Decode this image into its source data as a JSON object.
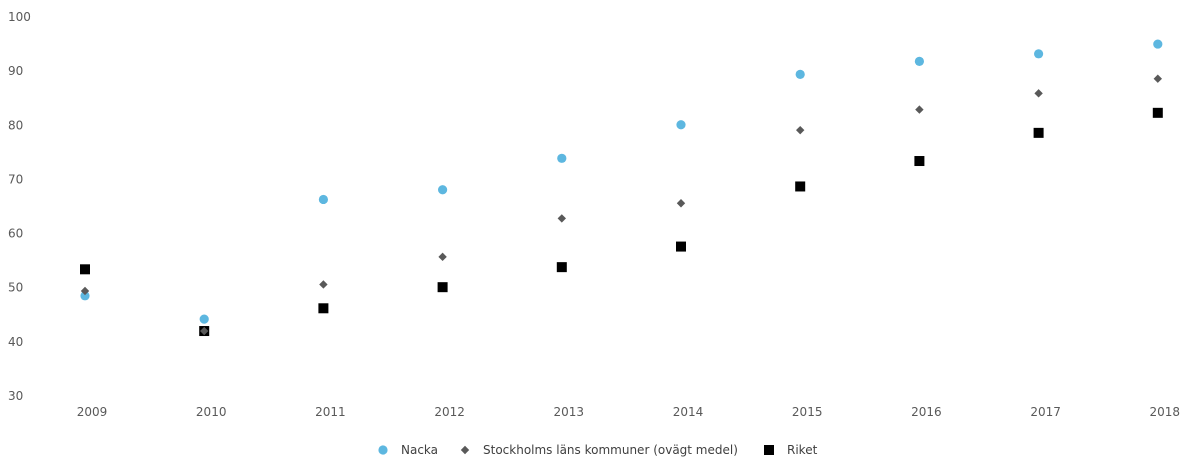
{
  "chart_data": {
    "type": "scatter",
    "categories": [
      "2009",
      "2010",
      "2011",
      "2012",
      "2013",
      "2014",
      "2015",
      "2016",
      "2017",
      "2018"
    ],
    "ylim": [
      30,
      100
    ],
    "yticks": [
      "30",
      "40",
      "50",
      "60",
      "70",
      "80",
      "90",
      "100"
    ],
    "grid": false,
    "legend_position": "bottom",
    "series": [
      {
        "name": "Nacka",
        "marker": "circle",
        "color": "#5DB7E0",
        "values": [
          48.5,
          44.2,
          66.3,
          68.1,
          73.9,
          80.1,
          89.4,
          91.8,
          93.2,
          95.0
        ]
      },
      {
        "name": "Stockholms läns kommuner (ovägt medel)",
        "marker": "diamond",
        "color": "#595959",
        "values": [
          49.4,
          42.0,
          50.6,
          55.7,
          62.8,
          65.6,
          79.1,
          82.9,
          85.9,
          88.6
        ]
      },
      {
        "name": "Riket",
        "marker": "square",
        "color": "#000000",
        "values": [
          53.4,
          42.0,
          46.2,
          50.1,
          53.8,
          57.6,
          68.7,
          73.4,
          78.6,
          82.3
        ]
      }
    ]
  }
}
